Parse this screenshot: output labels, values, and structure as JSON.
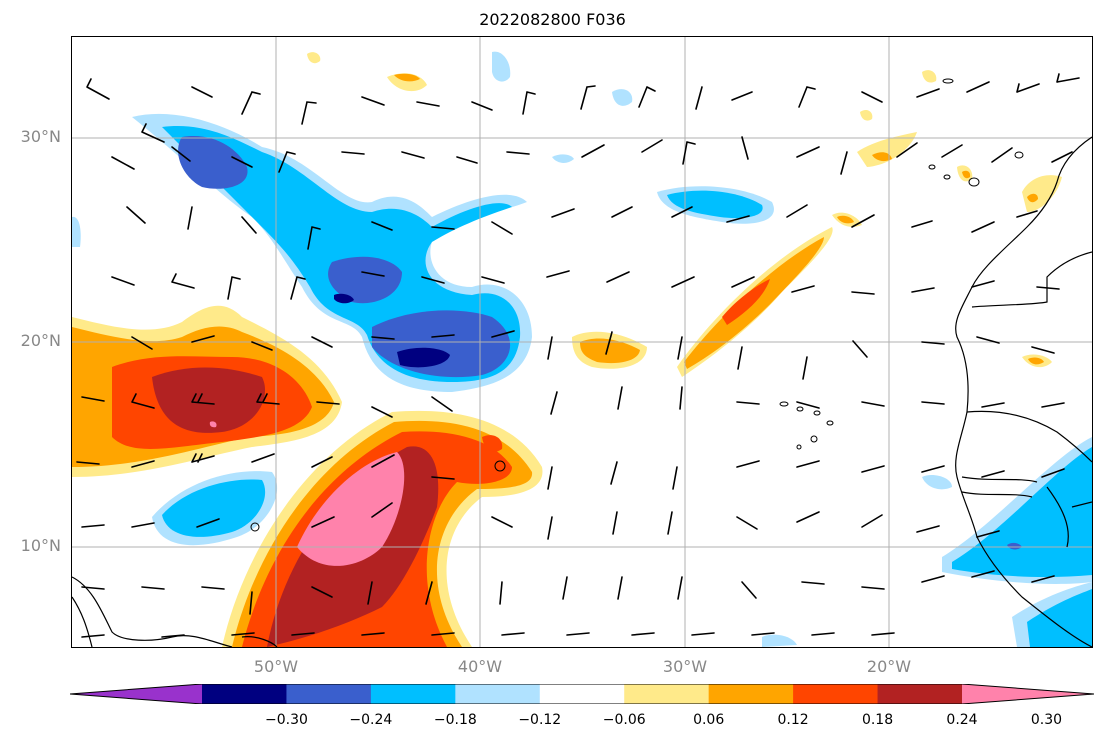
{
  "title": "2022082800 F036",
  "axes": {
    "lat_labels": [
      "30°N",
      "20°N",
      "10°N"
    ],
    "lon_labels": [
      "50°W",
      "40°W",
      "30°W",
      "20°W"
    ]
  },
  "colorbar": {
    "ticks": [
      "−0.30",
      "−0.24",
      "−0.18",
      "−0.12",
      "−0.06",
      "0.06",
      "0.12",
      "0.18",
      "0.24",
      "0.30"
    ],
    "colors": [
      "#9932cc",
      "#000080",
      "#3a5fcd",
      "#00bfff",
      "#b0e2ff",
      "#ffffff",
      "#ffea8a",
      "#ffa500",
      "#ff4500",
      "#b22222",
      "#ff82ab"
    ]
  },
  "palette": {
    "coast": "#000000",
    "grid": "#b0b0b0",
    "barb": "#000000"
  }
}
